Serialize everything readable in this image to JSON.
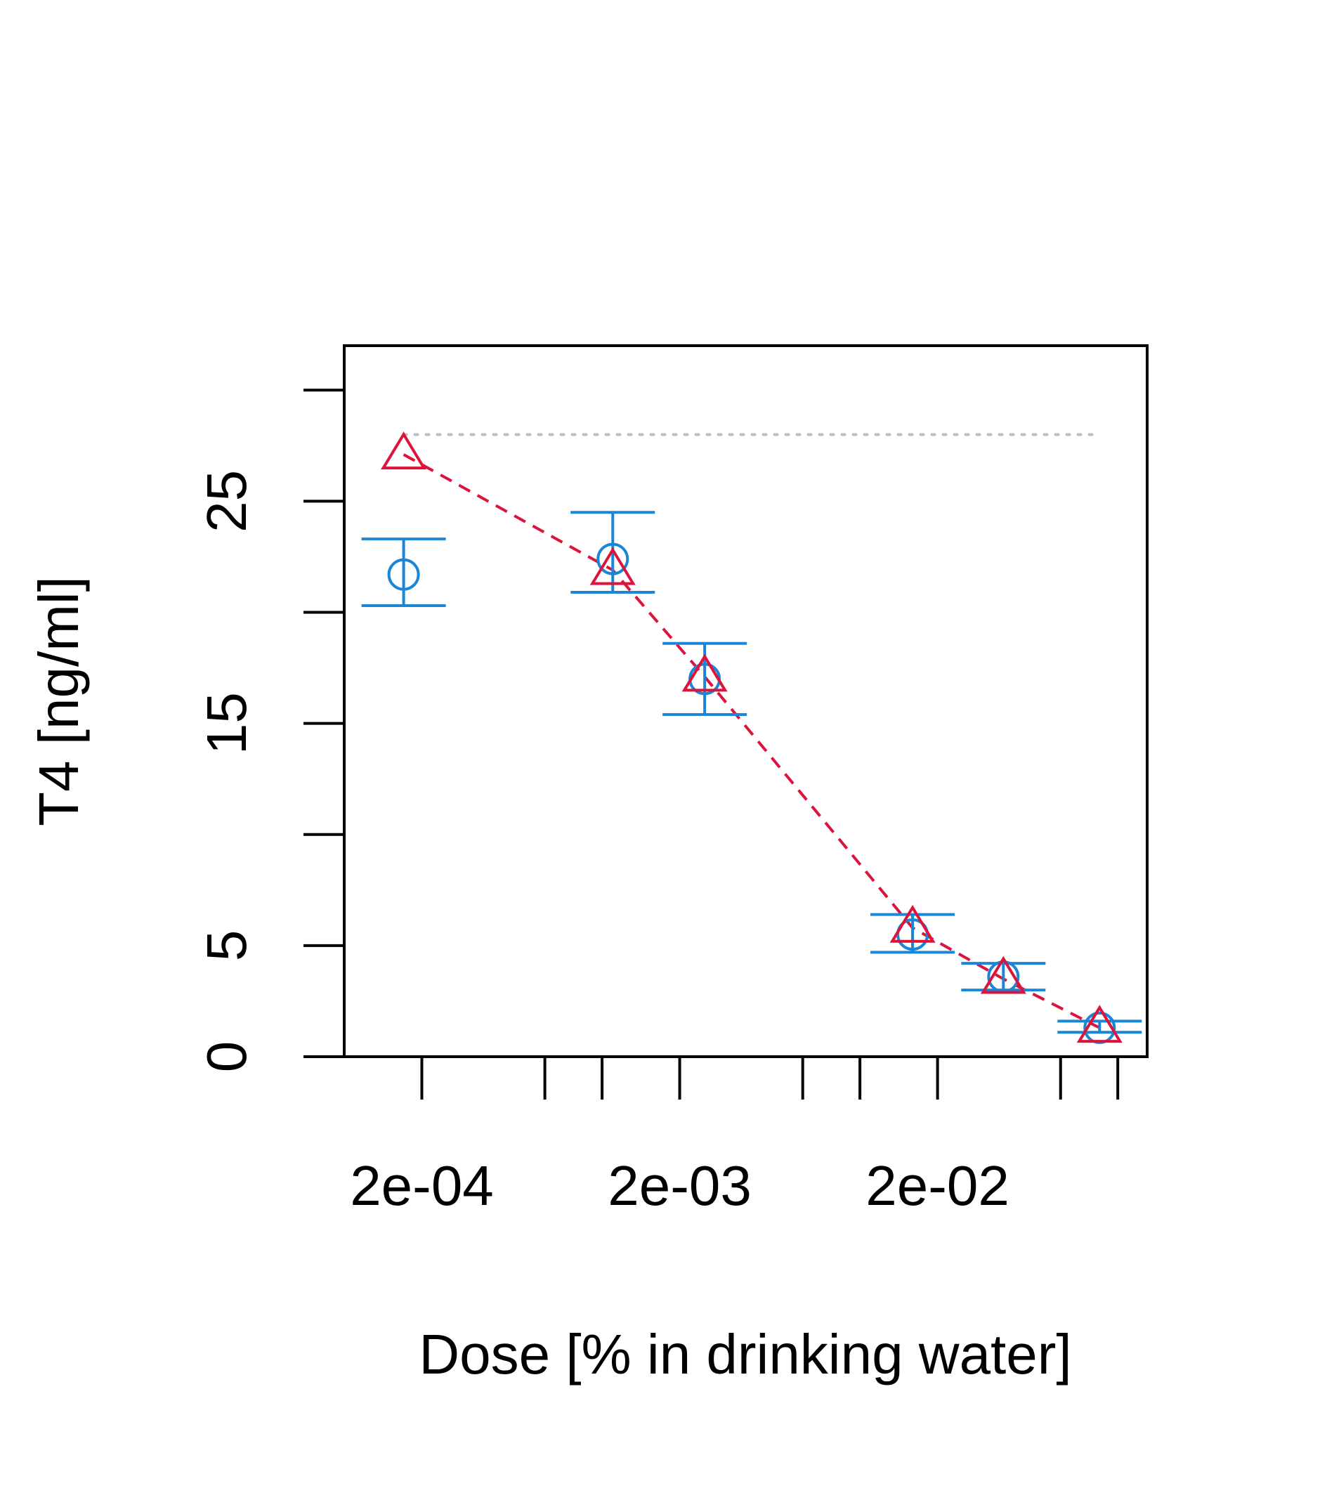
{
  "chart_data": {
    "type": "scatter",
    "title": "",
    "xlabel": "Dose [% in drinking water]",
    "ylabel": "T4 [ng/ml]",
    "x_scale": "log",
    "x_tick_labels": [
      {
        "value": 0.0002,
        "label": "2e-04"
      },
      {
        "value": 0.002,
        "label": "2e-03"
      },
      {
        "value": 0.02,
        "label": "2e-02"
      }
    ],
    "x_ticks": [
      0.0002,
      0.0006,
      0.001,
      0.002,
      0.006,
      0.01,
      0.02,
      0.06,
      0.1
    ],
    "y_tick_labels": [
      {
        "value": 0,
        "label": "0"
      },
      {
        "value": 5,
        "label": "5"
      },
      {
        "value": 15,
        "label": "15"
      },
      {
        "value": 25,
        "label": "25"
      }
    ],
    "y_ticks": [
      0,
      5,
      10,
      15,
      20,
      25,
      30
    ],
    "xlim": [
      0.0001,
      0.13
    ],
    "ylim": [
      0,
      32
    ],
    "grid": false,
    "reference_line": {
      "y": 28.0,
      "x_from": 0.00017,
      "x_to": 0.085,
      "color": "#BEBEBE",
      "style": "dotted"
    },
    "series": [
      {
        "marker": "circle",
        "color": "#1C86D6",
        "x": [
          0.00017,
          0.0011,
          0.0025,
          0.016,
          0.036,
          0.085
        ],
        "y": [
          21.7,
          22.4,
          17.0,
          5.5,
          3.6,
          1.3
        ],
        "error_low": [
          20.3,
          20.9,
          15.4,
          4.7,
          3.0,
          1.1
        ],
        "error_high": [
          23.3,
          24.5,
          18.6,
          6.4,
          4.2,
          1.6
        ]
      },
      {
        "marker": "triangle",
        "color": "#DC143C",
        "line_style": "dashed",
        "x": [
          0.00017,
          0.0011,
          0.0025,
          0.016,
          0.036,
          0.085
        ],
        "y": [
          27.1,
          21.9,
          17.1,
          5.8,
          3.5,
          1.3
        ]
      }
    ]
  }
}
